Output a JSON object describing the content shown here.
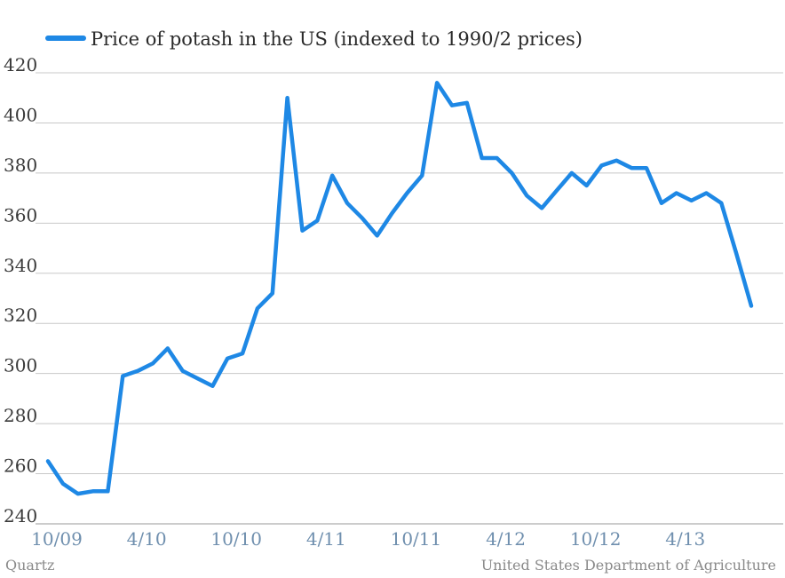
{
  "chart_data": {
    "type": "line",
    "series": [
      {
        "name": "Price of potash in the US (indexed to 1990/2 prices)",
        "color": "#1e88e5",
        "values": [
          265,
          256,
          252,
          253,
          253,
          299,
          301,
          304,
          310,
          301,
          298,
          295,
          306,
          308,
          326,
          332,
          410,
          357,
          361,
          379,
          368,
          362,
          355,
          364,
          372,
          379,
          416,
          407,
          408,
          386,
          386,
          380,
          371,
          366,
          373,
          380,
          375,
          383,
          385,
          382,
          382,
          368,
          372,
          369,
          372,
          368,
          348,
          327
        ]
      }
    ],
    "x_tick_labels": [
      {
        "label": "10/09",
        "index": 0
      },
      {
        "label": "4/10",
        "index": 6
      },
      {
        "label": "10/10",
        "index": 12
      },
      {
        "label": "4/11",
        "index": 18
      },
      {
        "label": "10/11",
        "index": 24
      },
      {
        "label": "4/12",
        "index": 30
      },
      {
        "label": "10/12",
        "index": 36
      },
      {
        "label": "4/13",
        "index": 42
      }
    ],
    "ylim": [
      240,
      420
    ],
    "yticks": [
      240,
      260,
      280,
      300,
      320,
      340,
      360,
      380,
      400,
      420
    ],
    "grid": true,
    "legend_position": "top-left"
  },
  "footer": {
    "left": "Quartz",
    "right": "United States Department of Agriculture"
  }
}
